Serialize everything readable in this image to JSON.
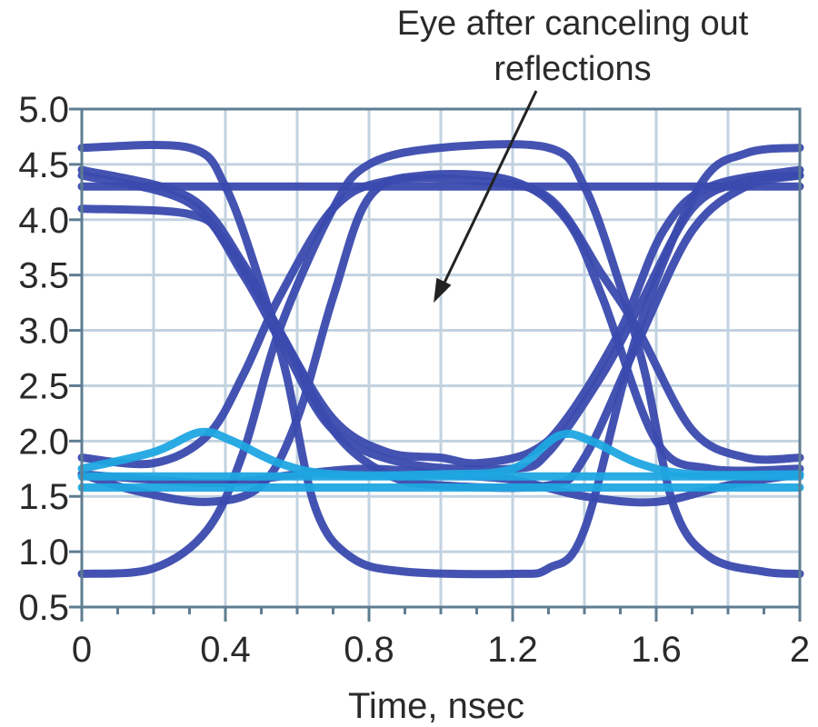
{
  "chart_data": {
    "type": "line",
    "title": "",
    "xlabel": "Time, nsec",
    "ylabel": "",
    "xlim": [
      0,
      2
    ],
    "ylim": [
      0.5,
      5.0
    ],
    "x_ticks": [
      "0",
      "0.4",
      "0.8",
      "1.2",
      "1.6",
      "2"
    ],
    "x_tick_values": [
      0,
      0.4,
      0.8,
      1.2,
      1.6,
      2
    ],
    "y_ticks": [
      "0.5",
      "1.0",
      "1.5",
      "2.0",
      "2.5",
      "3.0",
      "3.5",
      "4.0",
      "4.5",
      "5.0"
    ],
    "y_tick_values": [
      0.5,
      1.0,
      1.5,
      2.0,
      2.5,
      3.0,
      3.5,
      4.0,
      4.5,
      5.0
    ],
    "grid": true,
    "annotation": {
      "lines": [
        "Eye after canceling out",
        "reflections"
      ],
      "points_to": [
        0.98,
        3.25
      ]
    },
    "colors": {
      "dark_trace": "#3a4aae",
      "light_trace": "#1fa6e2",
      "grid": "#c2d2e0",
      "frame": "#5f7d92"
    },
    "series": [
      {
        "color": "dark",
        "x": [
          0,
          2
        ],
        "y": [
          4.3,
          4.3
        ]
      },
      {
        "color": "dark",
        "x": [
          0,
          0.3,
          0.4,
          0.5,
          0.57,
          0.65,
          0.75,
          0.9,
          1.2,
          1.3,
          1.4,
          1.55,
          1.72,
          1.85,
          2.0
        ],
        "y": [
          4.65,
          4.65,
          4.3,
          3.4,
          2.6,
          1.4,
          0.95,
          0.82,
          0.8,
          0.85,
          1.2,
          3.0,
          4.3,
          4.6,
          4.65
        ]
      },
      {
        "color": "dark",
        "x": [
          0,
          0.2,
          0.35,
          0.45,
          0.55,
          0.7,
          0.8,
          1.0,
          1.3,
          1.4,
          1.5,
          1.57,
          1.65,
          1.75,
          1.9,
          2.0
        ],
        "y": [
          0.8,
          0.85,
          1.2,
          1.9,
          3.0,
          4.1,
          4.5,
          4.65,
          4.65,
          4.3,
          3.4,
          2.6,
          1.4,
          0.95,
          0.82,
          0.8
        ]
      },
      {
        "color": "dark",
        "x": [
          0,
          0.3,
          0.45,
          0.55,
          0.7,
          0.85,
          1.0,
          1.1,
          1.25,
          1.35,
          1.5,
          1.62,
          1.75,
          2.0
        ],
        "y": [
          4.45,
          4.2,
          3.6,
          3.0,
          2.2,
          1.9,
          1.85,
          1.8,
          1.9,
          2.2,
          3.0,
          3.9,
          4.3,
          4.45
        ]
      },
      {
        "color": "dark",
        "x": [
          0,
          0.3,
          0.45,
          0.57,
          0.7,
          0.9,
          1.2,
          1.3,
          1.45,
          1.55,
          1.7,
          1.85,
          2.0
        ],
        "y": [
          4.4,
          4.15,
          3.5,
          2.8,
          2.1,
          1.8,
          1.75,
          1.9,
          2.6,
          3.2,
          4.1,
          4.35,
          4.4
        ]
      },
      {
        "color": "dark",
        "x": [
          0,
          0.3,
          0.4,
          0.55,
          0.7,
          0.85,
          1.0,
          1.3,
          1.4,
          1.55,
          1.7,
          1.85,
          2.0
        ],
        "y": [
          4.1,
          4.05,
          3.8,
          3.0,
          2.1,
          1.7,
          1.6,
          1.6,
          1.85,
          2.9,
          3.9,
          4.3,
          4.4
        ]
      },
      {
        "color": "dark",
        "x": [
          0,
          0.2,
          0.35,
          0.45,
          0.55,
          0.7,
          0.85,
          1.1,
          1.3,
          1.45,
          1.55,
          1.7,
          1.85,
          2.0
        ],
        "y": [
          1.85,
          1.8,
          2.05,
          2.6,
          3.3,
          4.1,
          4.35,
          4.35,
          4.2,
          3.5,
          3.0,
          2.1,
          1.85,
          1.85
        ]
      },
      {
        "color": "dark",
        "x": [
          0,
          0.15,
          0.35,
          0.5,
          0.6,
          0.7,
          0.8,
          0.95,
          1.2,
          1.35,
          1.45,
          1.6,
          1.75,
          2.0
        ],
        "y": [
          1.7,
          1.55,
          1.45,
          1.6,
          2.2,
          3.3,
          4.2,
          4.4,
          4.35,
          4.0,
          3.3,
          2.0,
          1.75,
          1.75
        ]
      },
      {
        "color": "dark",
        "x": [
          0,
          0.2,
          0.4,
          0.6,
          0.8,
          1.0,
          1.2,
          1.4,
          1.6,
          1.8,
          2.0
        ],
        "y": [
          1.7,
          1.65,
          1.62,
          1.7,
          1.75,
          1.7,
          1.65,
          1.5,
          1.45,
          1.6,
          1.7
        ]
      },
      {
        "color": "light",
        "x": [
          0,
          2
        ],
        "y": [
          1.58,
          1.58
        ]
      },
      {
        "color": "light",
        "x": [
          0,
          2
        ],
        "y": [
          1.68,
          1.68
        ]
      },
      {
        "color": "light",
        "x": [
          0,
          0.2,
          0.33,
          0.42,
          0.55,
          0.7,
          1.0,
          1.2,
          1.33,
          1.42,
          1.55,
          1.7,
          2.0
        ],
        "y": [
          1.75,
          1.9,
          2.08,
          2.0,
          1.8,
          1.7,
          1.7,
          1.75,
          2.05,
          2.0,
          1.8,
          1.7,
          1.7
        ]
      }
    ]
  }
}
